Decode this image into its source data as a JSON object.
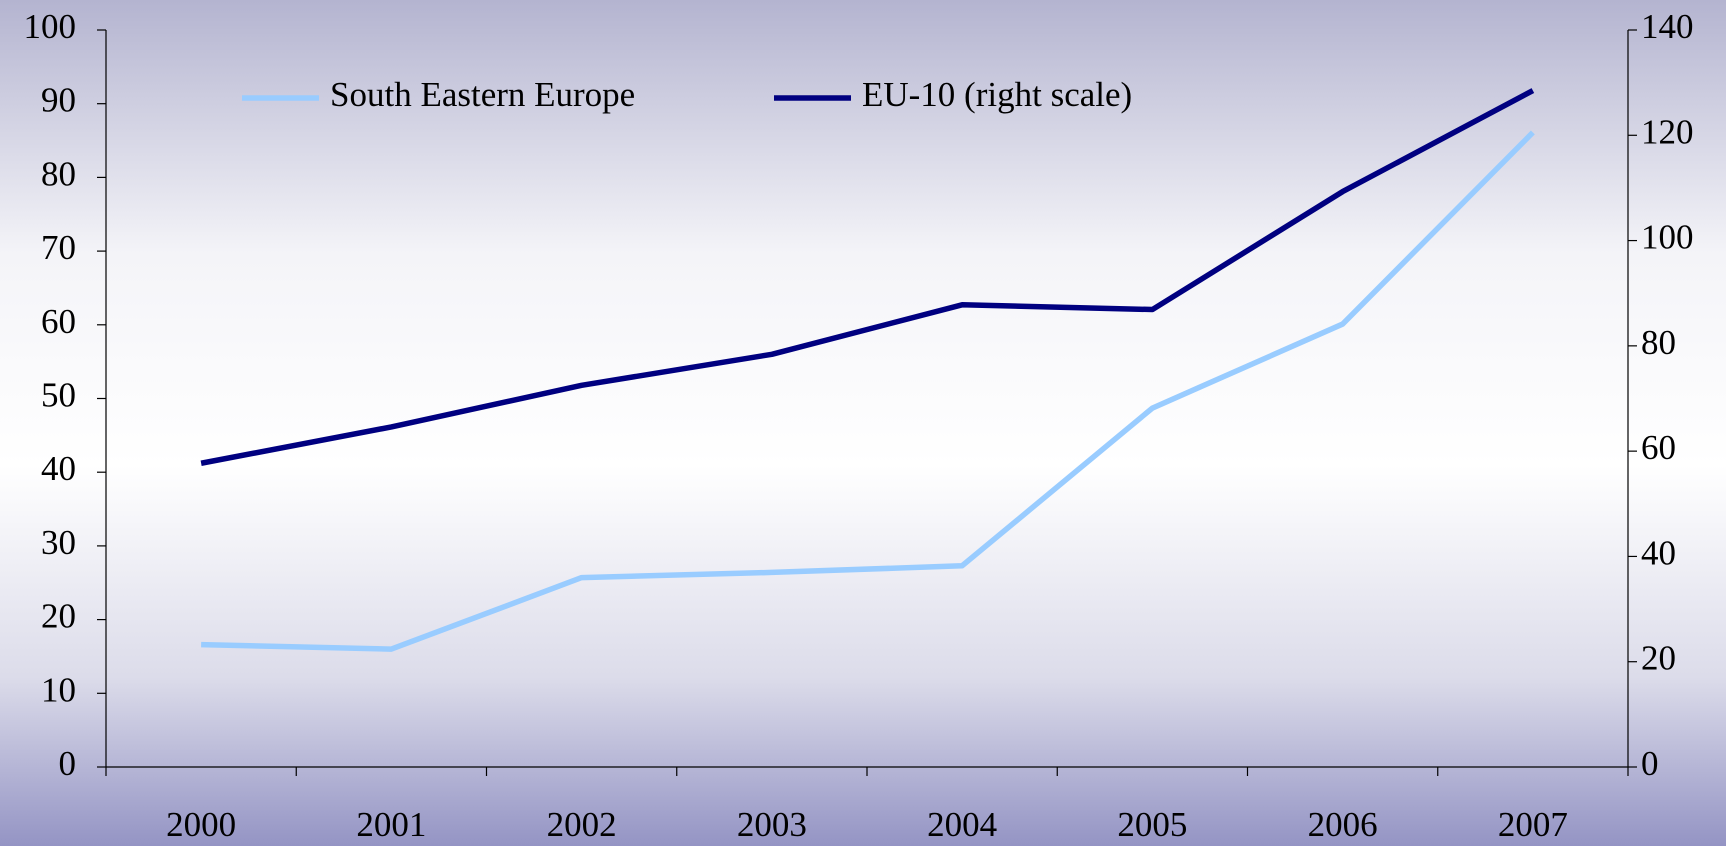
{
  "chart_data": {
    "type": "line",
    "categories": [
      "2000",
      "2001",
      "2002",
      "2003",
      "2004",
      "2005",
      "2006",
      "2007"
    ],
    "series": [
      {
        "name": "South Eastern Europe",
        "color": "#99ccff",
        "values": [
          16.6,
          16.0,
          25.7,
          26.4,
          27.3,
          48.7,
          60.1,
          86.1
        ]
      },
      {
        "name": "EU-10 (right scale)",
        "color": "#000080",
        "axis": "y2",
        "values": [
          57.7,
          64.6,
          72.5,
          78.4,
          87.8,
          86.9,
          109.3,
          128.5
        ]
      }
    ],
    "ylim": [
      0,
      100
    ],
    "yticks": [
      0,
      10,
      20,
      30,
      40,
      50,
      60,
      70,
      80,
      90,
      100
    ],
    "y2lim": [
      0,
      140
    ],
    "y2ticks": [
      0,
      20,
      40,
      60,
      80,
      100,
      120,
      140
    ],
    "legend": "top"
  }
}
